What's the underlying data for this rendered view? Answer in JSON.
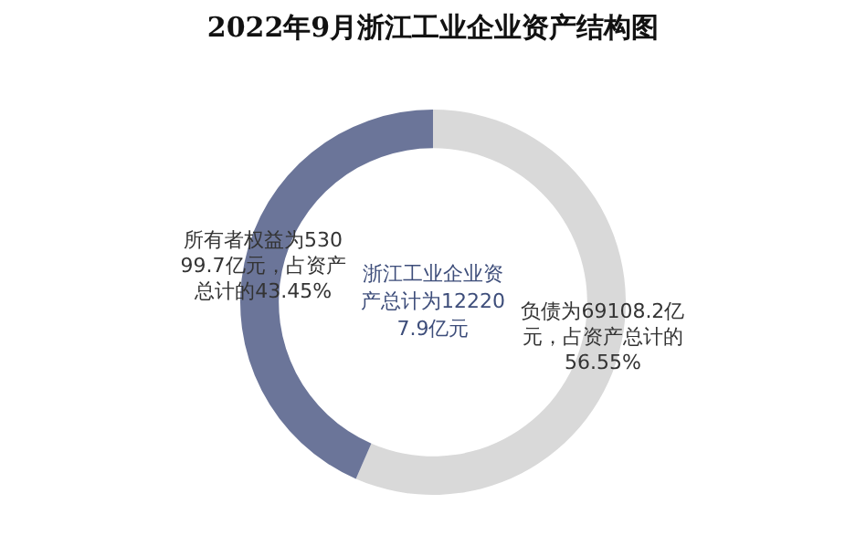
{
  "chart_data": {
    "type": "donut",
    "title": "2022年9月浙江工业企业资产结构图",
    "categories": [
      null,
      null
    ],
    "values": [
      69108.2,
      53099.7
    ],
    "colors": [
      "#d9d9d9",
      "#6b7599"
    ],
    "value_labels": [
      "负债为69108.2亿元，占资产总计的56.55%",
      "所有者权益为53099.7亿元，占资产总计的43.45%"
    ],
    "annotations": [
      "浙江工业企业资产总计为122207.9亿元"
    ],
    "legend": false
  }
}
